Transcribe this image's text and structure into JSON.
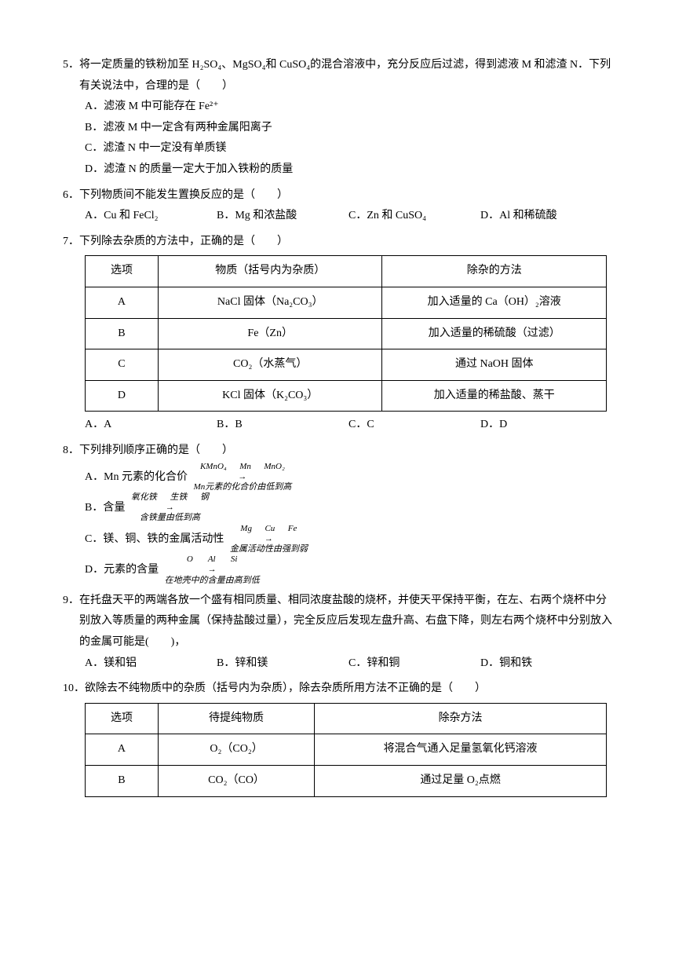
{
  "q5": {
    "num": "5．",
    "stem": "将一定质量的铁粉加至 H₂SO₄、MgSO₄和 CuSO₄的混合溶液中，充分反应后过滤，得到滤液 M 和滤渣 N．下列有关说法中，合理的是（　　）",
    "opts": {
      "A": "A．滤液 M 中可能存在 Fe²⁺",
      "B": "B．滤液 M 中一定含有两种金属阳离子",
      "C": "C．滤渣 N 中一定没有单质镁",
      "D": "D．滤渣 N 的质量一定大于加入铁粉的质量"
    }
  },
  "q6": {
    "num": "6．",
    "stem": "下列物质间不能发生置换反应的是（　　）",
    "opts": {
      "A": "A．Cu 和 FeCl₂",
      "B": "B．Mg 和浓盐酸",
      "C": "C．Zn 和 CuSO₄",
      "D": "D．Al 和稀硫酸"
    }
  },
  "q7": {
    "num": "7．",
    "stem": "下列除去杂质的方法中，正确的是（　　）",
    "headers": [
      "选项",
      "物质（括号内为杂质）",
      "除杂的方法"
    ],
    "rows": [
      [
        "A",
        "NaCl 固体（Na₂CO₃）",
        "加入适量的 Ca（OH）₂溶液"
      ],
      [
        "B",
        "Fe（Zn）",
        "加入适量的稀硫酸（过滤）"
      ],
      [
        "C",
        "CO₂（水蒸气）",
        "通过 NaOH 固体"
      ],
      [
        "D",
        "KCl 固体（K₂CO₃）",
        "加入适量的稀盐酸、蒸干"
      ]
    ],
    "opts": {
      "A": "A．A",
      "B": "B．B",
      "C": "C．C",
      "D": "D．D"
    },
    "col_widths": [
      "14%",
      "43%",
      "43%"
    ]
  },
  "q8": {
    "num": "8．",
    "stem": "下列排列顺序正确的是（　　）",
    "opts": {
      "A": {
        "label": "A．Mn 元素的化合价",
        "top": "KMnO₄      Mn      MnO₂",
        "bottom": "Mn元素的化合价由低到高"
      },
      "B": {
        "label": "B．含量",
        "top": "氧化铁      生铁      钢",
        "bottom": "含铁量由低到高"
      },
      "C": {
        "label": "C．镁、铜、铁的金属活动性",
        "top": "Mg      Cu      Fe",
        "bottom": "金属活动性由强到弱"
      },
      "D": {
        "label": "D．元素的含量",
        "top": "O       Al       Si",
        "bottom": "在地壳中的含量由高到低"
      }
    }
  },
  "q9": {
    "num": "9．",
    "stem": "在托盘天平的两端各放一个盛有相同质量、相同浓度盐酸的烧杯，并使天平保持平衡，在左、右两个烧杯中分别放入等质量的两种金属（保持盐酸过量），完全反应后发现左盘升高、右盘下降，则左右两个烧杯中分别放入的金属可能是(　　)，",
    "opts": {
      "A": "A．镁和铝",
      "B": "B．锌和镁",
      "C": "C．锌和铜",
      "D": "D．铜和铁"
    }
  },
  "q10": {
    "num": "10．",
    "stem": "欲除去不纯物质中的杂质（括号内为杂质），除去杂质所用方法不正确的是（　　）",
    "headers": [
      "选项",
      "待提纯物质",
      "除杂方法"
    ],
    "rows": [
      [
        "A",
        "O₂（CO₂）",
        "将混合气通入足量氢氧化钙溶液"
      ],
      [
        "B",
        "CO₂（CO）",
        "通过足量 O₂点燃"
      ]
    ],
    "col_widths": [
      "14%",
      "30%",
      "56%"
    ]
  }
}
